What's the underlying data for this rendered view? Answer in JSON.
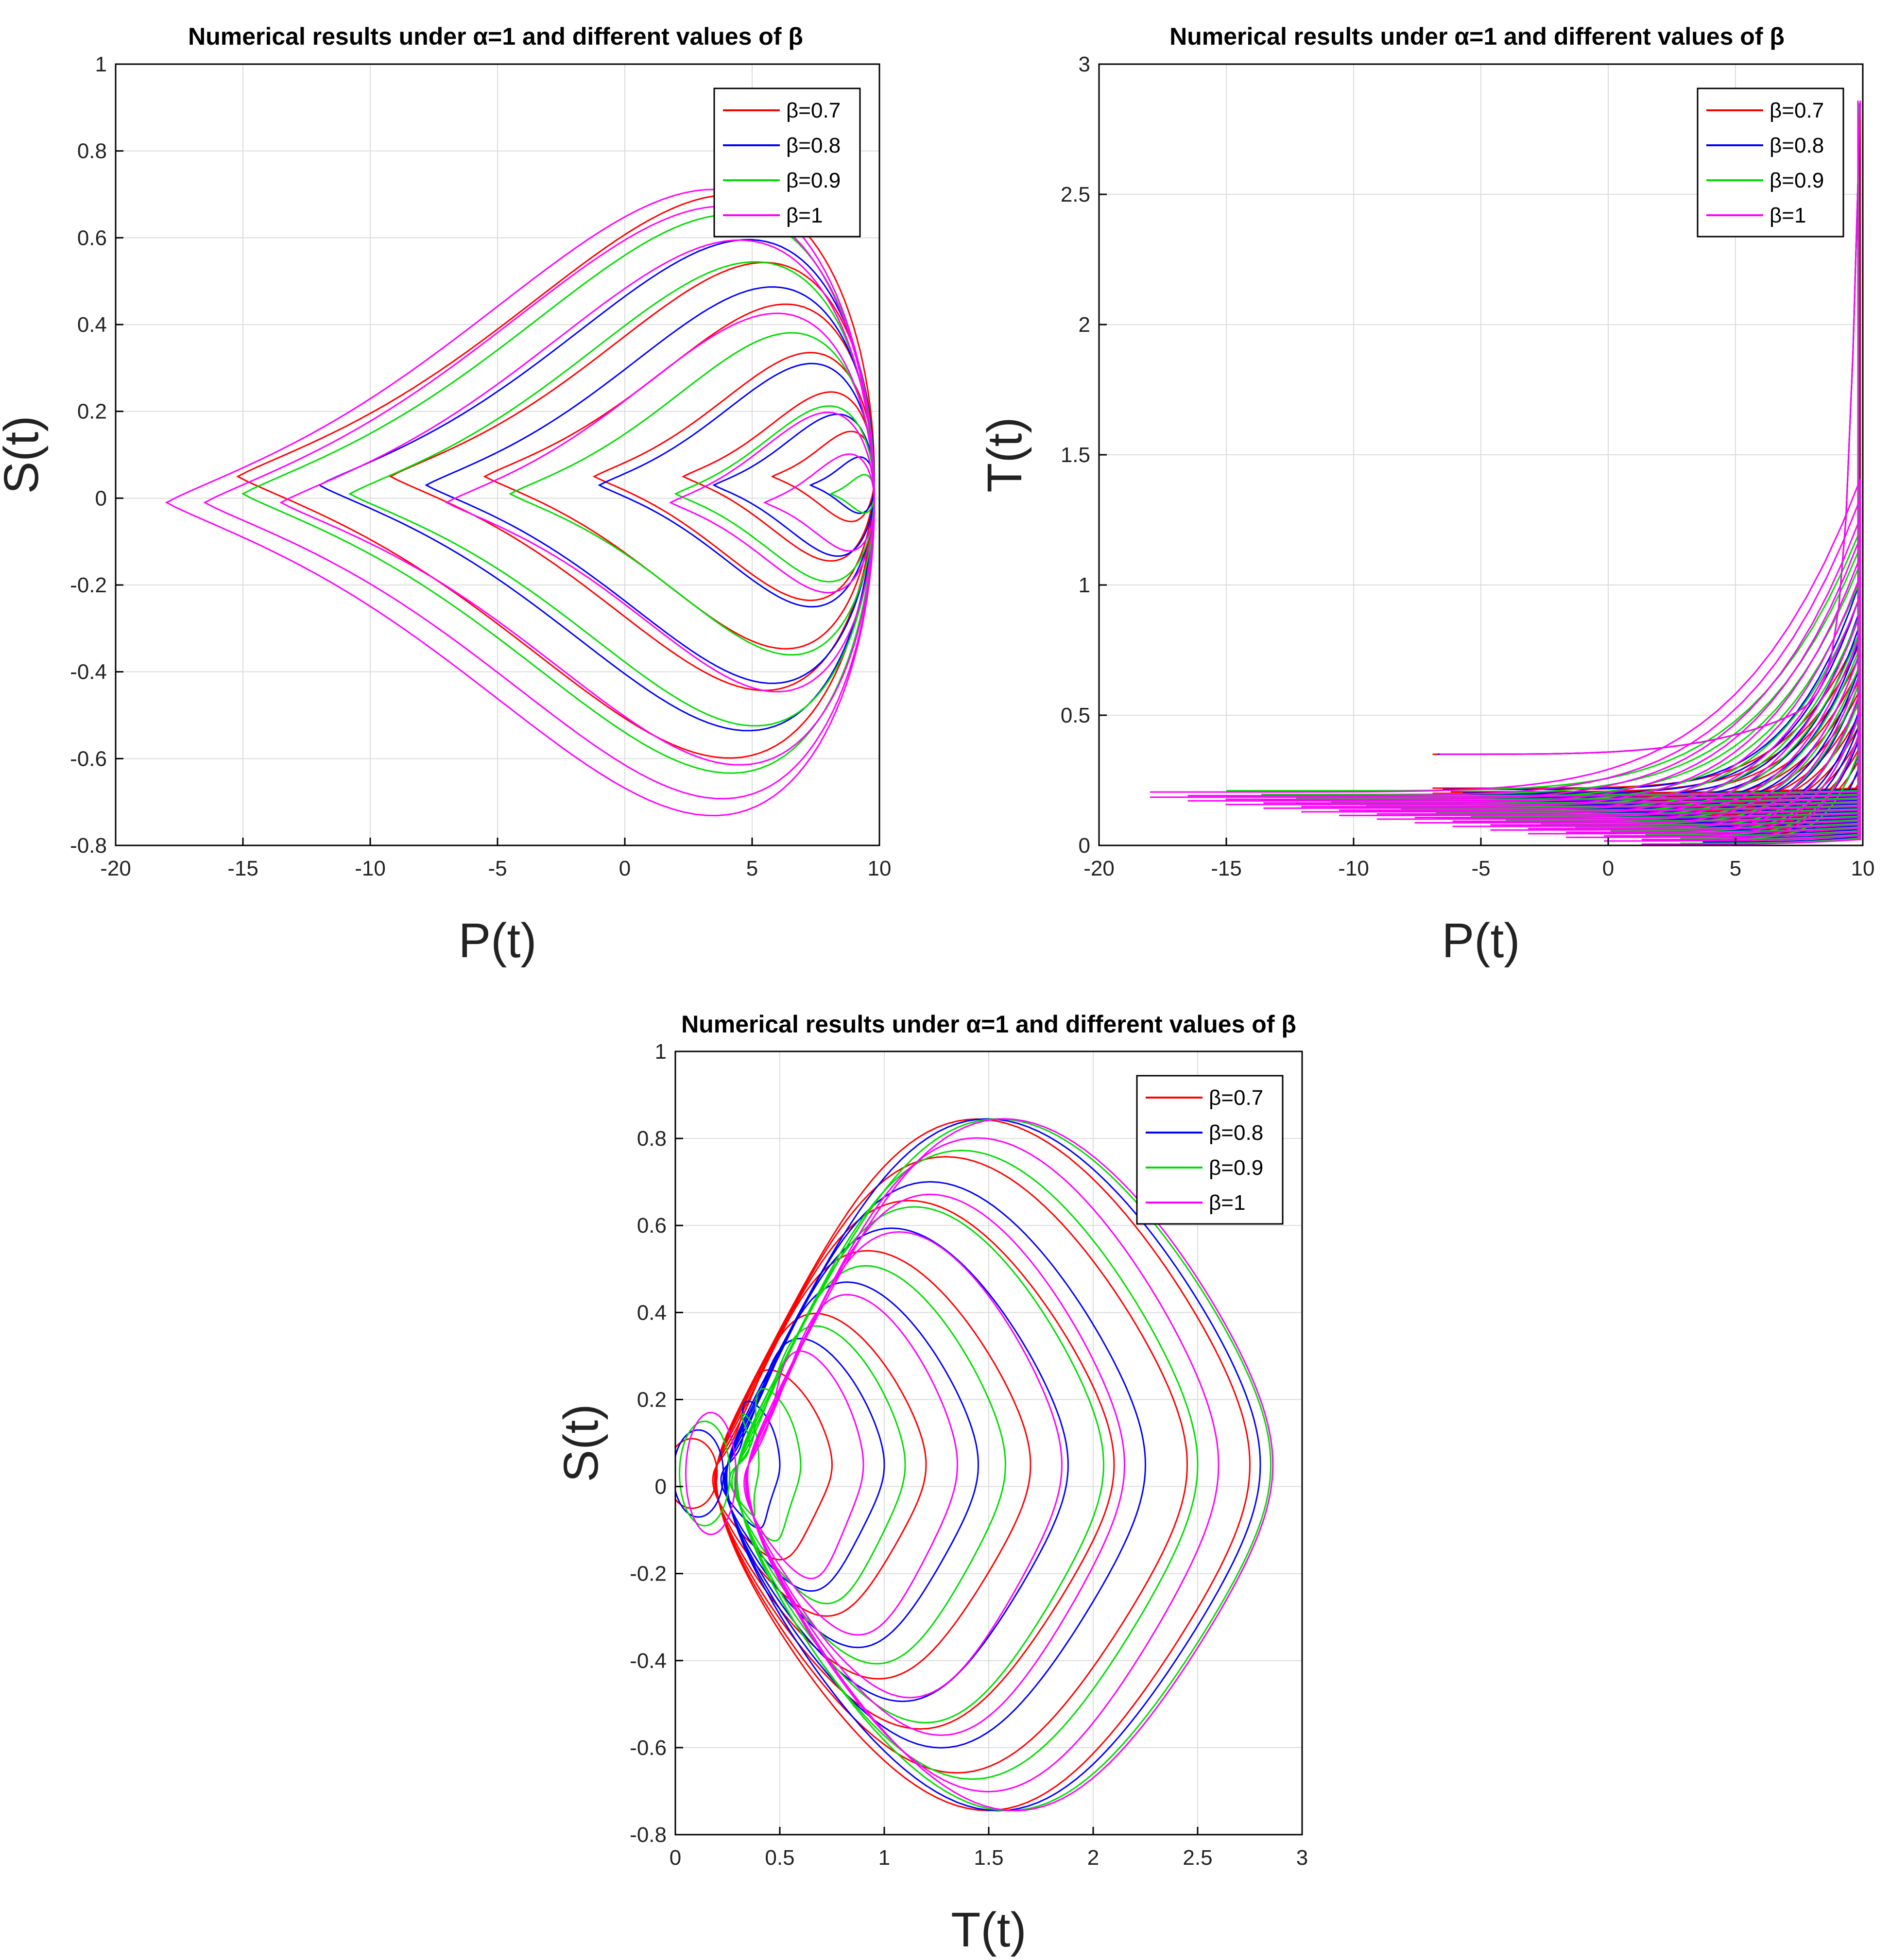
{
  "colors": {
    "series": [
      "#ff0000",
      "#0000ff",
      "#00dd00",
      "#ff00ff"
    ],
    "grid": "#dcdcdc",
    "axis": "#000000"
  },
  "chart_data": [
    {
      "type": "line",
      "title": "Numerical results under α=1 and different values of β",
      "xlabel": "P(t)",
      "ylabel": "S(t)",
      "xlim": [
        -20,
        10
      ],
      "ylim": [
        -0.8,
        1
      ],
      "xticks": [
        -20,
        -15,
        -10,
        -5,
        0,
        5,
        10
      ],
      "xtick_labels": [
        "-20",
        "-15",
        "-10",
        "-5",
        "0",
        "5",
        "10"
      ],
      "yticks": [
        -0.8,
        -0.6,
        -0.4,
        -0.2,
        0,
        0.2,
        0.4,
        0.6,
        0.8,
        1
      ],
      "ytick_labels": [
        "-0.8",
        "-0.6",
        "-0.4",
        "-0.2",
        "0",
        "0.2",
        "0.4",
        "0.6",
        "0.8",
        "1"
      ],
      "grid": true,
      "legend_position": "top-right",
      "legend": [
        "β=0.7",
        "β=0.8",
        "β=0.9",
        "β=1"
      ],
      "series": [
        {
          "name": "β=0.7",
          "min_x_of_loops": [
            -15.2,
            -9.2,
            -5.5,
            -1.2,
            2.3,
            5.8
          ]
        },
        {
          "name": "β=0.8",
          "min_x_of_loops": [
            -12.0,
            -7.8,
            -1.0,
            3.5,
            7.3
          ]
        },
        {
          "name": "β=0.9",
          "min_x_of_loops": [
            -15.0,
            -10.8,
            -4.5,
            2.0,
            8.1
          ]
        },
        {
          "name": "β=1",
          "min_x_of_loops": [
            -18.0,
            -16.5,
            -13.5,
            -7.0,
            1.8,
            5.5
          ]
        }
      ]
    },
    {
      "type": "line",
      "title": "Numerical results under α=1 and different values of β",
      "xlabel": "P(t)",
      "ylabel": "T(t)",
      "xlim": [
        -20,
        10
      ],
      "ylim": [
        0,
        3
      ],
      "xticks": [
        -20,
        -15,
        -10,
        -5,
        0,
        5,
        10
      ],
      "xtick_labels": [
        "-20",
        "-15",
        "-10",
        "-5",
        "0",
        "5",
        "10"
      ],
      "yticks": [
        0,
        0.5,
        1,
        1.5,
        2,
        2.5,
        3
      ],
      "ytick_labels": [
        "0",
        "0.5",
        "1",
        "1.5",
        "2",
        "2.5",
        "3"
      ],
      "grid": true,
      "legend_position": "top-right",
      "legend": [
        "β=0.7",
        "β=0.8",
        "β=0.9",
        "β=1"
      ],
      "series": [
        {
          "name": "β=0.7",
          "max_y": 2.85,
          "min_x": -6.9
        },
        {
          "name": "β=0.8",
          "max_y": 2.85,
          "min_x": -6.5
        },
        {
          "name": "β=0.9",
          "max_y": 2.85,
          "min_x": -15.0
        },
        {
          "name": "β=1",
          "max_y": 2.86,
          "min_x": -18.0
        }
      ]
    },
    {
      "type": "line",
      "title": "Numerical results under α=1 and different values of β",
      "xlabel": "T(t)",
      "ylabel": "S(t)",
      "xlim": [
        0,
        3
      ],
      "ylim": [
        -0.8,
        1
      ],
      "xticks": [
        0,
        0.5,
        1,
        1.5,
        2,
        2.5,
        3
      ],
      "xtick_labels": [
        "0",
        "0.5",
        "1",
        "1.5",
        "2",
        "2.5",
        "3"
      ],
      "yticks": [
        -0.8,
        -0.6,
        -0.4,
        -0.2,
        0,
        0.2,
        0.4,
        0.6,
        0.8,
        1
      ],
      "ytick_labels": [
        "-0.8",
        "-0.6",
        "-0.4",
        "-0.2",
        "0",
        "0.2",
        "0.4",
        "0.6",
        "0.8",
        "1"
      ],
      "grid": true,
      "legend_position": "top-right",
      "legend": [
        "β=0.7",
        "β=0.8",
        "β=0.9",
        "β=1"
      ],
      "series": [
        {
          "name": "β=0.7",
          "max_x_of_loops": [
            2.75,
            2.45,
            2.1,
            1.7,
            1.2,
            0.75
          ]
        },
        {
          "name": "β=0.8",
          "max_x_of_loops": [
            2.8,
            2.25,
            1.88,
            1.45,
            1.0,
            0.5
          ]
        },
        {
          "name": "β=0.9",
          "max_x_of_loops": [
            2.85,
            2.5,
            2.05,
            1.58,
            1.1,
            0.6,
            0.4
          ]
        },
        {
          "name": "β=1",
          "max_x_of_loops": [
            2.86,
            2.6,
            2.15,
            1.85,
            1.35,
            0.9
          ]
        }
      ]
    }
  ]
}
